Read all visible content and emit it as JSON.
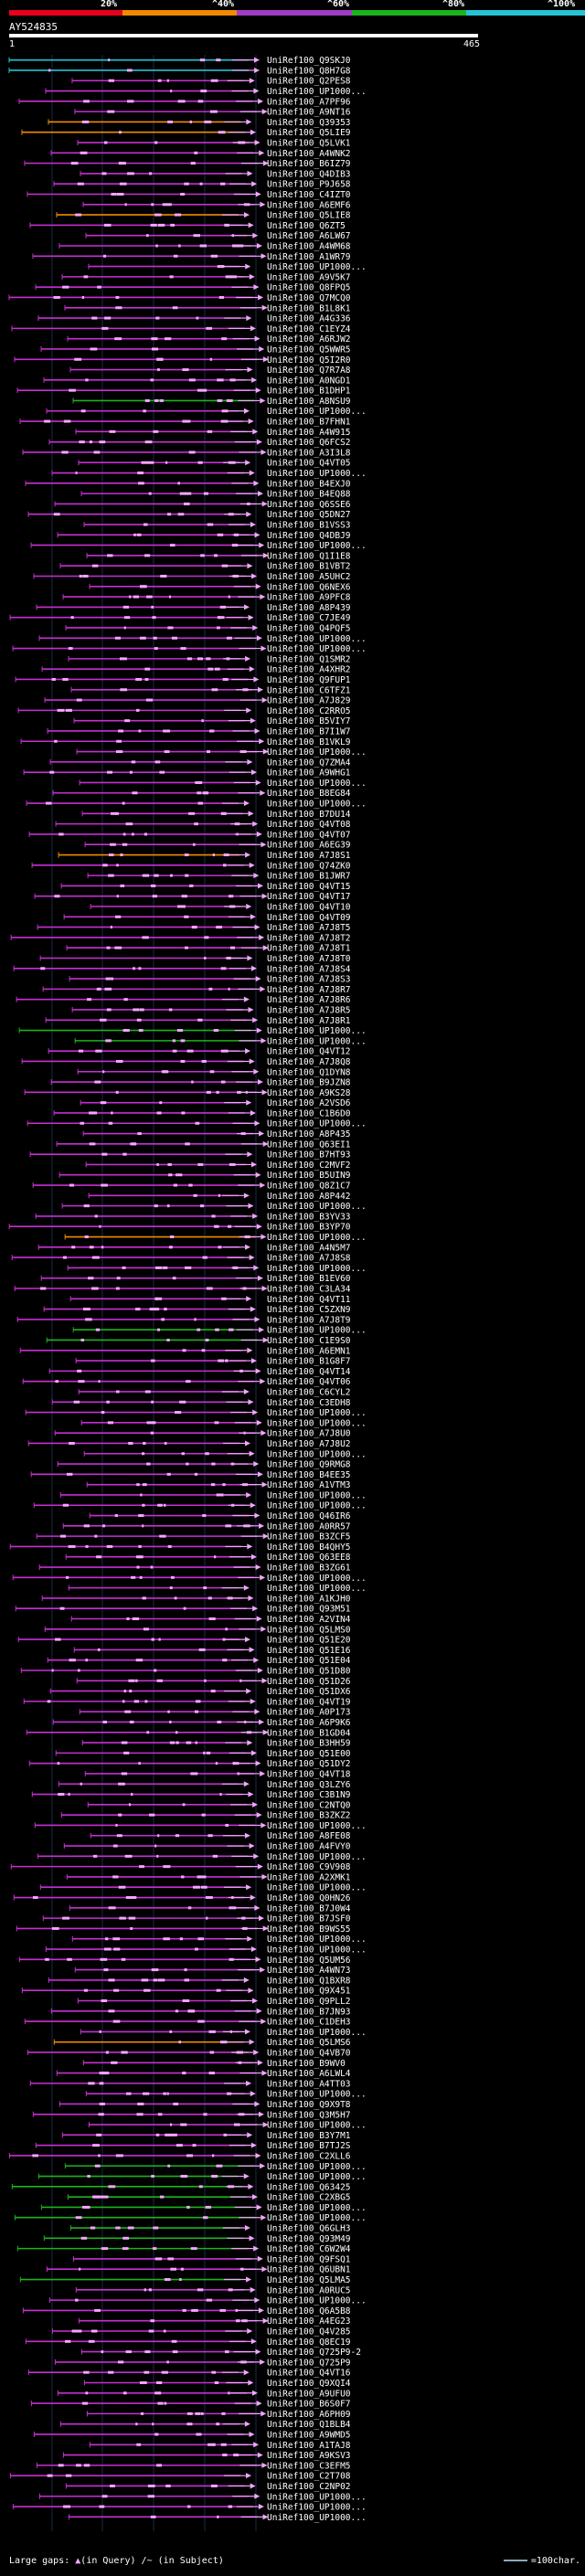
{
  "legend": {
    "segments": [
      {
        "color": "#e8001c"
      },
      {
        "color": "#f28a00"
      },
      {
        "color": "#a13cc4"
      },
      {
        "color": "#1db31d"
      },
      {
        "color": "#26c2d4"
      }
    ],
    "labels": [
      "20%",
      "^40%",
      "^60%",
      "^80%",
      "^100%"
    ]
  },
  "query": {
    "title": "AY524835",
    "start": "1",
    "end": "465"
  },
  "colors": {
    "red": "#e8001c",
    "orange": "#f28a00",
    "magenta": "#c72fd2",
    "green": "#1db31d",
    "cyan": "#26c2d4",
    "pink": "#f3a6ff",
    "white": "#ffffff"
  },
  "hits": [
    {
      "name": "UniRef100_Q9SKJ0",
      "color": "cyan"
    },
    {
      "name": "UniRef100_Q8H7G8",
      "color": "cyan"
    },
    {
      "name": "UniRef100_Q2PES8",
      "color": "magenta"
    },
    {
      "name": "UniRef100_UP1000...",
      "color": "magenta"
    },
    {
      "name": "UniRef100_A7PF96",
      "color": "magenta"
    },
    {
      "name": "UniRef100_A9NT16",
      "color": "magenta"
    },
    {
      "name": "UniRef100_Q39353",
      "color": "orange"
    },
    {
      "name": "UniRef100_Q5LIE9",
      "color": "orange"
    },
    {
      "name": "UniRef100_Q5LVK1",
      "color": "magenta"
    },
    {
      "name": "UniRef100_A4WNK2",
      "color": "magenta"
    },
    {
      "name": "UniRef100_B6IZ79",
      "color": "magenta"
    },
    {
      "name": "UniRef100_Q4DIB3",
      "color": "magenta"
    },
    {
      "name": "UniRef100_P9J658",
      "color": "magenta"
    },
    {
      "name": "UniRef100_C4IZT0",
      "color": "magenta"
    },
    {
      "name": "UniRef100_A6EMF6",
      "color": "magenta"
    },
    {
      "name": "UniRef100_Q5LIE8",
      "color": "orange"
    },
    {
      "name": "UniRef100_Q6ZT5",
      "color": "magenta"
    },
    {
      "name": "UniRef100_A6LW67",
      "color": "magenta"
    },
    {
      "name": "UniRef100_A4WM68",
      "color": "magenta"
    },
    {
      "name": "UniRef100_A1WR79",
      "color": "magenta"
    },
    {
      "name": "UniRef100_UP1000...",
      "color": "magenta"
    },
    {
      "name": "UniRef100_A9V5K7",
      "color": "magenta"
    },
    {
      "name": "UniRef100_Q8FPQ5",
      "color": "magenta"
    },
    {
      "name": "UniRef100_Q7MCQ0",
      "color": "magenta"
    },
    {
      "name": "UniRef100_B1L8K1",
      "color": "magenta"
    },
    {
      "name": "UniRef100_A4G336",
      "color": "magenta"
    },
    {
      "name": "UniRef100_C1EYZ4",
      "color": "magenta"
    },
    {
      "name": "UniRef100_A6RJW2",
      "color": "magenta"
    },
    {
      "name": "UniRef100_Q5WWR5",
      "color": "magenta"
    },
    {
      "name": "UniRef100_Q5I2R0",
      "color": "magenta"
    },
    {
      "name": "UniRef100_Q7R7A8",
      "color": "magenta"
    },
    {
      "name": "UniRef100_A0NGD1",
      "color": "magenta"
    },
    {
      "name": "UniRef100_B1DHP1",
      "color": "magenta"
    },
    {
      "name": "UniRef100_A8NSU9",
      "color": "green"
    },
    {
      "name": "UniRef100_UP1000...",
      "color": "magenta"
    },
    {
      "name": "UniRef100_B7FHN1",
      "color": "magenta"
    },
    {
      "name": "UniRef100_A4W915",
      "color": "magenta"
    },
    {
      "name": "UniRef100_Q6FCS2",
      "color": "magenta"
    },
    {
      "name": "UniRef100_A3I3L8",
      "color": "magenta"
    },
    {
      "name": "UniRef100_Q4VT05",
      "color": "magenta"
    },
    {
      "name": "UniRef100_UP1000...",
      "color": "magenta"
    },
    {
      "name": "UniRef100_B4EXJ0",
      "color": "magenta"
    },
    {
      "name": "UniRef100_B4EQ88",
      "color": "magenta"
    },
    {
      "name": "UniRef100_Q6SSE6",
      "color": "magenta"
    },
    {
      "name": "UniRef100_Q5DN27",
      "color": "magenta"
    },
    {
      "name": "UniRef100_B1VSS3",
      "color": "magenta"
    },
    {
      "name": "UniRef100_Q4DBJ9",
      "color": "magenta"
    },
    {
      "name": "UniRef100_UP1000...",
      "color": "magenta"
    },
    {
      "name": "UniRef100_Q1I1E8",
      "color": "magenta"
    },
    {
      "name": "UniRef100_B1VBT2",
      "color": "magenta"
    },
    {
      "name": "UniRef100_A5UHC2",
      "color": "magenta"
    },
    {
      "name": "UniRef100_Q6NEX6",
      "color": "magenta"
    },
    {
      "name": "UniRef100_A9PFC8",
      "color": "magenta"
    },
    {
      "name": "UniRef100_A8P439",
      "color": "magenta"
    },
    {
      "name": "UniRef100_C7JE49",
      "color": "magenta"
    },
    {
      "name": "UniRef100_Q4PQF5",
      "color": "magenta"
    },
    {
      "name": "UniRef100_UP1000...",
      "color": "magenta"
    },
    {
      "name": "UniRef100_UP1000...",
      "color": "magenta"
    },
    {
      "name": "UniRef100_Q1SMR2",
      "color": "magenta"
    },
    {
      "name": "UniRef100_A4XHR2",
      "color": "magenta"
    },
    {
      "name": "UniRef100_Q9FUP1",
      "color": "magenta"
    },
    {
      "name": "UniRef100_C6TFZ1",
      "color": "magenta"
    },
    {
      "name": "UniRef100_A7J829",
      "color": "magenta"
    },
    {
      "name": "UniRef100_C2RRO5",
      "color": "magenta"
    },
    {
      "name": "UniRef100_B5VIY7",
      "color": "magenta"
    },
    {
      "name": "UniRef100_B7I1W7",
      "color": "magenta"
    },
    {
      "name": "UniRef100_B1VKL9",
      "color": "magenta"
    },
    {
      "name": "UniRef100_UP1000...",
      "color": "magenta"
    },
    {
      "name": "UniRef100_Q7ZMA4",
      "color": "magenta"
    },
    {
      "name": "UniRef100_A9WHG1",
      "color": "magenta"
    },
    {
      "name": "UniRef100_UP1000...",
      "color": "magenta"
    },
    {
      "name": "UniRef100_B8EG84",
      "color": "magenta"
    },
    {
      "name": "UniRef100_UP1000...",
      "color": "magenta"
    },
    {
      "name": "UniRef100_B7DU14",
      "color": "magenta"
    },
    {
      "name": "UniRef100_Q4VT08",
      "color": "magenta"
    },
    {
      "name": "UniRef100_Q4VT07",
      "color": "magenta"
    },
    {
      "name": "UniRef100_A6EG39",
      "color": "magenta"
    },
    {
      "name": "UniRef100_A7J8S1",
      "color": "orange"
    },
    {
      "name": "UniRef100_Q74ZK0",
      "color": "magenta"
    },
    {
      "name": "UniRef100_B1JWR7",
      "color": "magenta"
    },
    {
      "name": "UniRef100_Q4VT15",
      "color": "magenta"
    },
    {
      "name": "UniRef100_Q4VT17",
      "color": "magenta"
    },
    {
      "name": "UniRef100_Q4VT10",
      "color": "magenta"
    },
    {
      "name": "UniRef100_Q4VT09",
      "color": "magenta"
    },
    {
      "name": "UniRef100_A7J8T5",
      "color": "magenta"
    },
    {
      "name": "UniRef100_A7J8T2",
      "color": "magenta"
    },
    {
      "name": "UniRef100_A7J8T1",
      "color": "magenta"
    },
    {
      "name": "UniRef100_A7J8T0",
      "color": "magenta"
    },
    {
      "name": "UniRef100_A7J8S4",
      "color": "magenta"
    },
    {
      "name": "UniRef100_A7J8S3",
      "color": "magenta"
    },
    {
      "name": "UniRef100_A7J8R7",
      "color": "magenta"
    },
    {
      "name": "UniRef100_A7J8R6",
      "color": "magenta"
    },
    {
      "name": "UniRef100_A7J8R5",
      "color": "magenta"
    },
    {
      "name": "UniRef100_A7J8R1",
      "color": "magenta"
    },
    {
      "name": "UniRef100_UP1000...",
      "color": "green"
    },
    {
      "name": "UniRef100_UP1000...",
      "color": "green"
    },
    {
      "name": "UniRef100_Q4VT12",
      "color": "magenta"
    },
    {
      "name": "UniRef100_A7J8Q8",
      "color": "magenta"
    },
    {
      "name": "UniRef100_Q1DYN8",
      "color": "magenta"
    },
    {
      "name": "UniRef100_B9JZN8",
      "color": "magenta"
    },
    {
      "name": "UniRef100_A9KS28",
      "color": "magenta"
    },
    {
      "name": "UniRef100_A2VSD6",
      "color": "magenta"
    },
    {
      "name": "UniRef100_C1B6D0",
      "color": "magenta"
    },
    {
      "name": "UniRef100_UP1000...",
      "color": "magenta"
    },
    {
      "name": "UniRef100_A8P435",
      "color": "magenta"
    },
    {
      "name": "UniRef100_Q63EI1",
      "color": "magenta"
    },
    {
      "name": "UniRef100_B7HT93",
      "color": "magenta"
    },
    {
      "name": "UniRef100_C2MVF2",
      "color": "magenta"
    },
    {
      "name": "UniRef100_B5UIN9",
      "color": "magenta"
    },
    {
      "name": "UniRef100_Q8Z1C7",
      "color": "magenta"
    },
    {
      "name": "UniRef100_A8P442",
      "color": "magenta"
    },
    {
      "name": "UniRef100_UP1000...",
      "color": "magenta"
    },
    {
      "name": "UniRef100_B3YV33",
      "color": "magenta"
    },
    {
      "name": "UniRef100_B3YP70",
      "color": "magenta"
    },
    {
      "name": "UniRef100_UP1000...",
      "color": "orange"
    },
    {
      "name": "UniRef100_A4N5M7",
      "color": "magenta"
    },
    {
      "name": "UniRef100_A7J8S8",
      "color": "magenta"
    },
    {
      "name": "UniRef100_UP1000...",
      "color": "magenta"
    },
    {
      "name": "UniRef100_B1EV60",
      "color": "magenta"
    },
    {
      "name": "UniRef100_C3LA34",
      "color": "magenta"
    },
    {
      "name": "UniRef100_Q4VT11",
      "color": "magenta"
    },
    {
      "name": "UniRef100_C5ZXN9",
      "color": "magenta"
    },
    {
      "name": "UniRef100_A7J8T9",
      "color": "magenta"
    },
    {
      "name": "UniRef100_UP1000...",
      "color": "green"
    },
    {
      "name": "UniRef100_C1E9S0",
      "color": "green"
    },
    {
      "name": "UniRef100_A6EMN1",
      "color": "magenta"
    },
    {
      "name": "UniRef100_B1G8F7",
      "color": "magenta"
    },
    {
      "name": "UniRef100_Q4VT14",
      "color": "magenta"
    },
    {
      "name": "UniRef100_Q4VT06",
      "color": "magenta"
    },
    {
      "name": "UniRef100_C6CYL2",
      "color": "magenta"
    },
    {
      "name": "UniRef100_C3EDH8",
      "color": "magenta"
    },
    {
      "name": "UniRef100_UP1000...",
      "color": "magenta"
    },
    {
      "name": "UniRef100_UP1000...",
      "color": "magenta"
    },
    {
      "name": "UniRef100_A7J8U0",
      "color": "magenta"
    },
    {
      "name": "UniRef100_A7J8U2",
      "color": "magenta"
    },
    {
      "name": "UniRef100_UP1000...",
      "color": "magenta"
    },
    {
      "name": "UniRef100_Q9RMG8",
      "color": "magenta"
    },
    {
      "name": "UniRef100_B4EE35",
      "color": "magenta"
    },
    {
      "name": "UniRef100_A1VTM3",
      "color": "magenta"
    },
    {
      "name": "UniRef100_UP1000...",
      "color": "magenta"
    },
    {
      "name": "UniRef100_UP1000...",
      "color": "magenta"
    },
    {
      "name": "UniRef100_Q46IR6",
      "color": "magenta"
    },
    {
      "name": "UniRef100_A0RR57",
      "color": "magenta"
    },
    {
      "name": "UniRef100_B3ZCF5",
      "color": "magenta"
    },
    {
      "name": "UniRef100_B4QHY5",
      "color": "magenta"
    },
    {
      "name": "UniRef100_Q63EE8",
      "color": "magenta"
    },
    {
      "name": "UniRef100_B3ZG61",
      "color": "magenta"
    },
    {
      "name": "UniRef100_UP1000...",
      "color": "magenta"
    },
    {
      "name": "UniRef100_UP1000...",
      "color": "magenta"
    },
    {
      "name": "UniRef100_A1KJH0",
      "color": "magenta"
    },
    {
      "name": "UniRef100_Q93M51",
      "color": "magenta"
    },
    {
      "name": "UniRef100_A2VIN4",
      "color": "magenta"
    },
    {
      "name": "UniRef100_Q5LMS0",
      "color": "magenta"
    },
    {
      "name": "UniRef100_Q51E20",
      "color": "magenta"
    },
    {
      "name": "UniRef100_Q51E16",
      "color": "magenta"
    },
    {
      "name": "UniRef100_Q51E04",
      "color": "magenta"
    },
    {
      "name": "UniRef100_Q51D80",
      "color": "magenta"
    },
    {
      "name": "UniRef100_Q51D26",
      "color": "magenta"
    },
    {
      "name": "UniRef100_Q51DX6",
      "color": "magenta"
    },
    {
      "name": "UniRef100_Q4VT19",
      "color": "magenta"
    },
    {
      "name": "UniRef100_A0P173",
      "color": "magenta"
    },
    {
      "name": "UniRef100_A6P9K6",
      "color": "magenta"
    },
    {
      "name": "UniRef100_B1GD04",
      "color": "magenta"
    },
    {
      "name": "UniRef100_B3HH59",
      "color": "magenta"
    },
    {
      "name": "UniRef100_Q51E00",
      "color": "magenta"
    },
    {
      "name": "UniRef100_Q51DY2",
      "color": "magenta"
    },
    {
      "name": "UniRef100_Q4VT18",
      "color": "magenta"
    },
    {
      "name": "UniRef100_Q3LZY6",
      "color": "magenta"
    },
    {
      "name": "UniRef100_C3B1N9",
      "color": "magenta"
    },
    {
      "name": "UniRef100_C2NTQ0",
      "color": "magenta"
    },
    {
      "name": "UniRef100_B3ZKZ2",
      "color": "magenta"
    },
    {
      "name": "UniRef100_UP1000...",
      "color": "magenta"
    },
    {
      "name": "UniRef100_A8FE08",
      "color": "magenta"
    },
    {
      "name": "UniRef100_A4FVY0",
      "color": "magenta"
    },
    {
      "name": "UniRef100_UP1000...",
      "color": "magenta"
    },
    {
      "name": "UniRef100_C9V908",
      "color": "magenta"
    },
    {
      "name": "UniRef100_A2XMK1",
      "color": "magenta"
    },
    {
      "name": "UniRef100_UP1000...",
      "color": "magenta"
    },
    {
      "name": "UniRef100_Q0HN26",
      "color": "magenta"
    },
    {
      "name": "UniRef100_B7J0W4",
      "color": "magenta"
    },
    {
      "name": "UniRef100_B7JSF0",
      "color": "magenta"
    },
    {
      "name": "UniRef100_B9WS55",
      "color": "magenta"
    },
    {
      "name": "UniRef100_UP1000...",
      "color": "magenta"
    },
    {
      "name": "UniRef100_UP1000...",
      "color": "magenta"
    },
    {
      "name": "UniRef100_Q5UM56",
      "color": "magenta"
    },
    {
      "name": "UniRef100_A4WN73",
      "color": "magenta"
    },
    {
      "name": "UniRef100_Q1BXR8",
      "color": "magenta"
    },
    {
      "name": "UniRef100_Q9X451",
      "color": "magenta"
    },
    {
      "name": "UniRef100_Q9PLL2",
      "color": "magenta"
    },
    {
      "name": "UniRef100_B7JN93",
      "color": "magenta"
    },
    {
      "name": "UniRef100_C1DEH3",
      "color": "magenta"
    },
    {
      "name": "UniRef100_UP1000...",
      "color": "magenta"
    },
    {
      "name": "UniRef100_Q5LMS6",
      "color": "orange"
    },
    {
      "name": "UniRef100_Q4VB70",
      "color": "magenta"
    },
    {
      "name": "UniRef100_B9WV0",
      "color": "magenta"
    },
    {
      "name": "UniRef100_A6LWL4",
      "color": "magenta"
    },
    {
      "name": "UniRef100_A4TT03",
      "color": "magenta"
    },
    {
      "name": "UniRef100_UP1000...",
      "color": "magenta"
    },
    {
      "name": "UniRef100_Q9X9T8",
      "color": "magenta"
    },
    {
      "name": "UniRef100_Q3M5H7",
      "color": "magenta"
    },
    {
      "name": "UniRef100_UP1000...",
      "color": "magenta"
    },
    {
      "name": "UniRef100_B3Y7M1",
      "color": "magenta"
    },
    {
      "name": "UniRef100_B7TJ2S",
      "color": "magenta"
    },
    {
      "name": "UniRef100_C2XLL6",
      "color": "magenta"
    },
    {
      "name": "UniRef100_UP1000...",
      "color": "green"
    },
    {
      "name": "UniRef100_UP1000...",
      "color": "green"
    },
    {
      "name": "UniRef100_Q63425",
      "color": "green"
    },
    {
      "name": "UniRef100_C2XBG5",
      "color": "green"
    },
    {
      "name": "UniRef100_UP1000...",
      "color": "green"
    },
    {
      "name": "UniRef100_UP1000...",
      "color": "green"
    },
    {
      "name": "UniRef100_Q6GLH3",
      "color": "green"
    },
    {
      "name": "UniRef100_Q93M49",
      "color": "green"
    },
    {
      "name": "UniRef100_C6W2W4",
      "color": "green"
    },
    {
      "name": "UniRef100_Q9FSQ1",
      "color": "magenta"
    },
    {
      "name": "UniRef100_Q6UBN1",
      "color": "magenta"
    },
    {
      "name": "UniRef100_Q5LMA5",
      "color": "green"
    },
    {
      "name": "UniRef100_A0RUC5",
      "color": "magenta"
    },
    {
      "name": "UniRef100_UP1000...",
      "color": "magenta"
    },
    {
      "name": "UniRef100_Q6A5B8",
      "color": "magenta"
    },
    {
      "name": "UniRef100_A4EG23",
      "color": "magenta"
    },
    {
      "name": "UniRef100_Q4V285",
      "color": "magenta"
    },
    {
      "name": "UniRef100_Q8EC19",
      "color": "magenta"
    },
    {
      "name": "UniRef100_Q725P9-2",
      "color": "magenta"
    },
    {
      "name": "UniRef100_Q725P9",
      "color": "magenta"
    },
    {
      "name": "UniRef100_Q4VT16",
      "color": "magenta"
    },
    {
      "name": "UniRef100_Q9XQI4",
      "color": "magenta"
    },
    {
      "name": "UniRef100_A9UFU0",
      "color": "magenta"
    },
    {
      "name": "UniRef100_B6S0F7",
      "color": "magenta"
    },
    {
      "name": "UniRef100_A6PH09",
      "color": "magenta"
    },
    {
      "name": "UniRef100_Q1BLB4",
      "color": "magenta"
    },
    {
      "name": "UniRef100_A9WMD5",
      "color": "magenta"
    },
    {
      "name": "UniRef100_A1TAJ8",
      "color": "magenta"
    },
    {
      "name": "UniRef100_A9KSV3",
      "color": "magenta"
    },
    {
      "name": "UniRef100_C3EFM5",
      "color": "magenta"
    },
    {
      "name": "UniRef100_C2T708",
      "color": "magenta"
    },
    {
      "name": "UniRef100_C2NP02",
      "color": "magenta"
    },
    {
      "name": "UniRef100_UP1000...",
      "color": "magenta"
    },
    {
      "name": "UniRef100_UP1000...",
      "color": "magenta"
    },
    {
      "name": "UniRef100_UP1000...",
      "color": "magenta"
    }
  ],
  "footer": {
    "large_gaps_label": "Large gaps:",
    "in_query_text": "(in Query)",
    "in_subject_text": "/~ (in Subject)",
    "scale_label": "=100char."
  }
}
